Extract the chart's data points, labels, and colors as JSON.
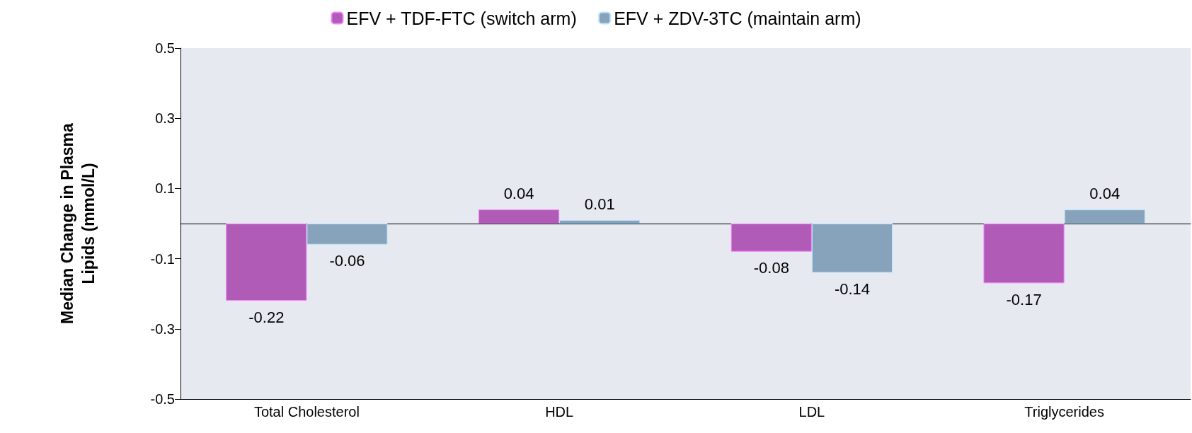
{
  "chart_data": {
    "type": "bar",
    "ylabel": "Median Change in Plasma Lipids (mmol/L)",
    "categories": [
      "Total Cholesterol",
      "HDL",
      "LDL",
      "Triglycerides"
    ],
    "series": [
      {
        "name": "EFV + TDF-FTC (switch arm)",
        "color": "#b05cb6",
        "values": [
          -0.22,
          0.04,
          -0.08,
          -0.17
        ]
      },
      {
        "name": "EFV + ZDV-3TC (maintain arm)",
        "color": "#86a3bb",
        "values": [
          -0.06,
          0.01,
          -0.14,
          0.04
        ]
      }
    ],
    "ylim": [
      -0.5,
      0.5
    ],
    "yticks": [
      -0.5,
      -0.3,
      -0.1,
      0.1,
      0.3,
      0.5
    ],
    "grid": false,
    "legend": "top",
    "data_labels": true
  }
}
